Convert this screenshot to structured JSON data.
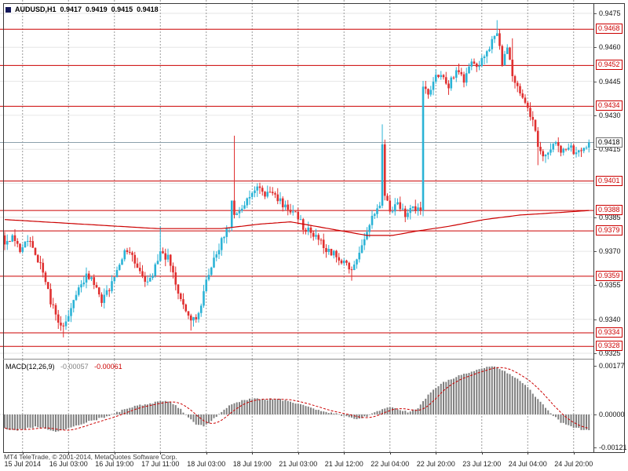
{
  "header": {
    "symbol": "AUDUSD,H1",
    "open": "0.9417",
    "high": "0.9419",
    "low": "0.9415",
    "close": "0.9418"
  },
  "macd_panel": {
    "label": "MACD(12,26,9)",
    "macd_value": "-0.00057",
    "signal_value": "-0.00061",
    "axis_labels": [
      "0.00177",
      "0.00000",
      "-0.00121"
    ],
    "axis_values": [
      0.00177,
      0,
      -0.00121
    ]
  },
  "footer": {
    "copyright": "MT4 TeleTrade, © 2001-2014, MetaQuotes Software Corp."
  },
  "time_axis": {
    "labels": [
      "15 Jul 2014",
      "16 Jul 03:00",
      "16 Jul 19:00",
      "17 Jul 11:00",
      "18 Jul 03:00",
      "18 Jul 19:00",
      "21 Jul 03:00",
      "21 Jul 12:00",
      "22 Jul 04:00",
      "22 Jul 20:00",
      "23 Jul 12:00",
      "24 Jul 04:00",
      "24 Jul 20:00"
    ]
  },
  "price_axis": {
    "plain_labels": [
      "0.9475",
      "0.9460",
      "0.9445",
      "0.9430",
      "0.9415",
      "0.9385",
      "0.9370",
      "0.9355",
      "0.9340",
      "0.9325"
    ],
    "line_labels": [
      "0.9468",
      "0.9452",
      "0.9434",
      "0.9401",
      "0.9388",
      "0.9379",
      "0.9359",
      "0.9334",
      "0.9328"
    ],
    "current_price": "0.9418"
  },
  "colors": {
    "bull": "#2bb3d6",
    "bear": "#e03030",
    "line_red": "#cc0000",
    "ma": "#cc0000",
    "signal": "#cc0000",
    "hist": "#808080",
    "grid_v": "#9a9a9a",
    "grid_h": "#e6e6e6",
    "current_line": "#8ca0ac"
  },
  "chart_data": [
    {
      "type": "candlestick",
      "title": "AUDUSD H1",
      "bars": 230,
      "ylim": [
        0.9325,
        0.9475
      ],
      "grid_step": 0.0015,
      "x_labels": [
        "15 Jul 2014",
        "16 Jul 03:00",
        "16 Jul 19:00",
        "17 Jul 11:00",
        "18 Jul 03:00",
        "18 Jul 19:00",
        "21 Jul 03:00",
        "21 Jul 12:00",
        "22 Jul 04:00",
        "22 Jul 20:00",
        "23 Jul 12:00",
        "24 Jul 04:00",
        "24 Jul 20:00"
      ],
      "last_ohlc": {
        "open": 0.9417,
        "high": 0.9419,
        "low": 0.9415,
        "close": 0.9418
      },
      "current_price": 0.9418,
      "horizontal_lines": [
        0.9468,
        0.9452,
        0.9434,
        0.9401,
        0.9388,
        0.9379,
        0.9359,
        0.9334,
        0.9328
      ],
      "close_anchors": [
        [
          0,
          0.9372
        ],
        [
          3,
          0.9376
        ],
        [
          6,
          0.937
        ],
        [
          9,
          0.9375
        ],
        [
          12,
          0.9369
        ],
        [
          15,
          0.9362
        ],
        [
          18,
          0.9348
        ],
        [
          21,
          0.9339
        ],
        [
          23,
          0.9336
        ],
        [
          26,
          0.9346
        ],
        [
          29,
          0.9353
        ],
        [
          32,
          0.936
        ],
        [
          35,
          0.9356
        ],
        [
          38,
          0.9348
        ],
        [
          41,
          0.9354
        ],
        [
          44,
          0.9363
        ],
        [
          47,
          0.937
        ],
        [
          50,
          0.9367
        ],
        [
          53,
          0.936
        ],
        [
          56,
          0.9356
        ],
        [
          59,
          0.9363
        ],
        [
          61,
          0.9369
        ],
        [
          64,
          0.9367
        ],
        [
          67,
          0.9356
        ],
        [
          70,
          0.9346
        ],
        [
          73,
          0.9338
        ],
        [
          76,
          0.9343
        ],
        [
          79,
          0.9356
        ],
        [
          82,
          0.9366
        ],
        [
          85,
          0.9375
        ],
        [
          88,
          0.9382
        ],
        [
          89,
          0.9391
        ],
        [
          90,
          0.9385
        ],
        [
          93,
          0.9389
        ],
        [
          96,
          0.9394
        ],
        [
          99,
          0.9398
        ],
        [
          102,
          0.9394
        ],
        [
          105,
          0.9397
        ],
        [
          108,
          0.9392
        ],
        [
          111,
          0.9388
        ],
        [
          114,
          0.9386
        ],
        [
          117,
          0.9381
        ],
        [
          120,
          0.9378
        ],
        [
          123,
          0.9375
        ],
        [
          126,
          0.9371
        ],
        [
          129,
          0.9369
        ],
        [
          132,
          0.9366
        ],
        [
          135,
          0.9362
        ],
        [
          138,
          0.9366
        ],
        [
          141,
          0.9376
        ],
        [
          144,
          0.9386
        ],
        [
          147,
          0.939
        ],
        [
          148,
          0.9418
        ],
        [
          149,
          0.9396
        ],
        [
          151,
          0.9388
        ],
        [
          154,
          0.9391
        ],
        [
          157,
          0.9386
        ],
        [
          160,
          0.939
        ],
        [
          163,
          0.9387
        ],
        [
          164,
          0.9443
        ],
        [
          166,
          0.9438
        ],
        [
          168,
          0.9446
        ],
        [
          171,
          0.9448
        ],
        [
          174,
          0.9443
        ],
        [
          177,
          0.945
        ],
        [
          180,
          0.9446
        ],
        [
          183,
          0.9455
        ],
        [
          186,
          0.9451
        ],
        [
          189,
          0.9459
        ],
        [
          193,
          0.9466
        ],
        [
          195,
          0.9452
        ],
        [
          197,
          0.9461
        ],
        [
          199,
          0.9446
        ],
        [
          202,
          0.9441
        ],
        [
          204,
          0.9436
        ],
        [
          207,
          0.9428
        ],
        [
          209,
          0.9416
        ],
        [
          212,
          0.9412
        ],
        [
          215,
          0.9418
        ],
        [
          218,
          0.9414
        ],
        [
          221,
          0.9417
        ],
        [
          224,
          0.9413
        ],
        [
          227,
          0.9416
        ],
        [
          229,
          0.9418
        ]
      ],
      "high_spikes": [
        [
          61,
          0.9381
        ],
        [
          90,
          0.9421
        ],
        [
          148,
          0.9426
        ],
        [
          193,
          0.9472
        ],
        [
          199,
          0.9464
        ]
      ],
      "low_spikes": [
        [
          23,
          0.9332
        ],
        [
          73,
          0.9335
        ],
        [
          136,
          0.9357
        ],
        [
          209,
          0.9408
        ]
      ],
      "ma_anchors": [
        [
          0,
          0.9384
        ],
        [
          30,
          0.9382
        ],
        [
          60,
          0.938
        ],
        [
          85,
          0.938
        ],
        [
          100,
          0.9382
        ],
        [
          112,
          0.9383
        ],
        [
          122,
          0.9381
        ],
        [
          132,
          0.9379
        ],
        [
          142,
          0.9377
        ],
        [
          152,
          0.9377
        ],
        [
          162,
          0.9379
        ],
        [
          174,
          0.9381
        ],
        [
          188,
          0.9384
        ],
        [
          202,
          0.9386
        ],
        [
          216,
          0.9387
        ],
        [
          229,
          0.9388
        ]
      ]
    },
    {
      "type": "bar",
      "title": "MACD(12,26,9)",
      "ylim": [
        -0.00121,
        0.00177
      ],
      "macd_current": -0.00057,
      "signal_current": -0.00061,
      "signal_period": 9,
      "hist_anchors": [
        [
          0,
          -0.0005
        ],
        [
          4,
          -0.00058
        ],
        [
          8,
          -0.00052
        ],
        [
          12,
          -0.00045
        ],
        [
          16,
          -0.00052
        ],
        [
          20,
          -0.00062
        ],
        [
          24,
          -0.00055
        ],
        [
          28,
          -0.0004
        ],
        [
          32,
          -0.00028
        ],
        [
          36,
          -0.00018
        ],
        [
          40,
          -8e-05
        ],
        [
          44,
          8e-05
        ],
        [
          48,
          0.00022
        ],
        [
          52,
          0.00032
        ],
        [
          56,
          0.00038
        ],
        [
          60,
          0.00046
        ],
        [
          63,
          0.00048
        ],
        [
          66,
          0.0004
        ],
        [
          69,
          0.0002
        ],
        [
          72,
          -0.00012
        ],
        [
          75,
          -0.00035
        ],
        [
          78,
          -0.00042
        ],
        [
          81,
          -0.00025
        ],
        [
          84,
          2e-05
        ],
        [
          87,
          0.00026
        ],
        [
          90,
          0.00042
        ],
        [
          94,
          0.00052
        ],
        [
          98,
          0.00058
        ],
        [
          102,
          0.00054
        ],
        [
          106,
          0.00058
        ],
        [
          110,
          0.0005
        ],
        [
          114,
          0.0004
        ],
        [
          118,
          0.0003
        ],
        [
          122,
          0.0002
        ],
        [
          126,
          0.0001
        ],
        [
          130,
          2e-05
        ],
        [
          134,
          -8e-05
        ],
        [
          138,
          -0.00016
        ],
        [
          142,
          -6e-05
        ],
        [
          146,
          0.00012
        ],
        [
          150,
          0.00028
        ],
        [
          154,
          0.00018
        ],
        [
          158,
          0.0001
        ],
        [
          162,
          0.00022
        ],
        [
          165,
          0.0006
        ],
        [
          168,
          0.00092
        ],
        [
          172,
          0.00116
        ],
        [
          176,
          0.00132
        ],
        [
          180,
          0.00148
        ],
        [
          184,
          0.0016
        ],
        [
          188,
          0.0017
        ],
        [
          191,
          0.00176
        ],
        [
          194,
          0.00166
        ],
        [
          198,
          0.00148
        ],
        [
          202,
          0.00124
        ],
        [
          206,
          0.00088
        ],
        [
          210,
          0.00046
        ],
        [
          214,
          6e-05
        ],
        [
          218,
          -0.0003
        ],
        [
          222,
          -0.00044
        ],
        [
          226,
          -0.00054
        ],
        [
          229,
          -0.00057
        ]
      ]
    }
  ]
}
